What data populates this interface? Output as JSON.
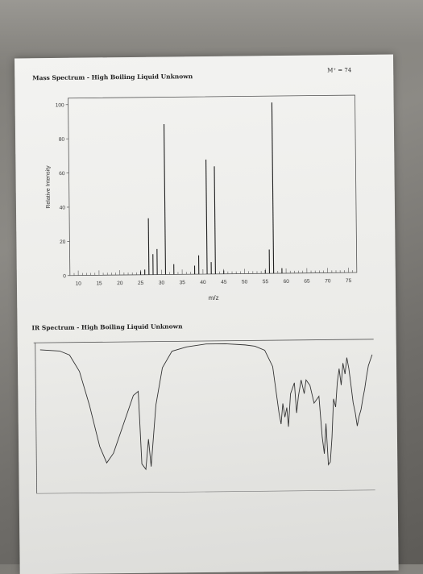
{
  "header": {
    "ms_title": "Mass Spectrum - High Boiling Liquid Unknown",
    "molecular_ion": "M⁺ = 74",
    "ir_title": "IR Spectrum - High Boiling Liquid Unknown"
  },
  "chart_data": [
    {
      "type": "bar",
      "title": "Mass Spectrum - High Boiling Liquid Unknown",
      "xlabel": "m/z",
      "ylabel": "Relative Intensity",
      "xlim": [
        10,
        75
      ],
      "ylim": [
        0,
        100
      ],
      "x_ticks": [
        10,
        15,
        20,
        25,
        30,
        35,
        40,
        45,
        50,
        55,
        60,
        65,
        70,
        75
      ],
      "y_ticks": [
        0,
        20,
        40,
        60,
        80,
        100
      ],
      "grid": false,
      "peaks": [
        {
          "x": 25,
          "y": 2
        },
        {
          "x": 26,
          "y": 3
        },
        {
          "x": 27,
          "y": 33
        },
        {
          "x": 28,
          "y": 12
        },
        {
          "x": 29,
          "y": 15
        },
        {
          "x": 31,
          "y": 88
        },
        {
          "x": 33,
          "y": 6
        },
        {
          "x": 38,
          "y": 5
        },
        {
          "x": 39,
          "y": 11
        },
        {
          "x": 41,
          "y": 67
        },
        {
          "x": 42,
          "y": 7
        },
        {
          "x": 43,
          "y": 63
        },
        {
          "x": 45,
          "y": 2
        },
        {
          "x": 55,
          "y": 2
        },
        {
          "x": 56,
          "y": 14
        },
        {
          "x": 57,
          "y": 100
        },
        {
          "x": 59,
          "y": 3
        }
      ]
    },
    {
      "type": "line",
      "title": "IR Spectrum - High Boiling Liquid Unknown",
      "xlabel": "",
      "ylabel": "",
      "x_reversed": true,
      "trace": [
        {
          "x": 4000,
          "y": 96
        },
        {
          "x": 3800,
          "y": 95
        },
        {
          "x": 3700,
          "y": 92
        },
        {
          "x": 3600,
          "y": 80
        },
        {
          "x": 3500,
          "y": 55
        },
        {
          "x": 3400,
          "y": 25
        },
        {
          "x": 3330,
          "y": 13
        },
        {
          "x": 3260,
          "y": 20
        },
        {
          "x": 3150,
          "y": 42
        },
        {
          "x": 3050,
          "y": 62
        },
        {
          "x": 3000,
          "y": 65
        },
        {
          "x": 2970,
          "y": 12
        },
        {
          "x": 2930,
          "y": 8
        },
        {
          "x": 2900,
          "y": 30
        },
        {
          "x": 2875,
          "y": 10
        },
        {
          "x": 2820,
          "y": 55
        },
        {
          "x": 2750,
          "y": 82
        },
        {
          "x": 2650,
          "y": 94
        },
        {
          "x": 2500,
          "y": 97
        },
        {
          "x": 2300,
          "y": 99
        },
        {
          "x": 2100,
          "y": 99
        },
        {
          "x": 1900,
          "y": 98
        },
        {
          "x": 1800,
          "y": 97
        },
        {
          "x": 1700,
          "y": 94
        },
        {
          "x": 1620,
          "y": 82
        },
        {
          "x": 1560,
          "y": 48
        },
        {
          "x": 1540,
          "y": 40
        },
        {
          "x": 1520,
          "y": 55
        },
        {
          "x": 1500,
          "y": 45
        },
        {
          "x": 1480,
          "y": 52
        },
        {
          "x": 1465,
          "y": 38
        },
        {
          "x": 1440,
          "y": 62
        },
        {
          "x": 1400,
          "y": 70
        },
        {
          "x": 1380,
          "y": 48
        },
        {
          "x": 1360,
          "y": 60
        },
        {
          "x": 1330,
          "y": 72
        },
        {
          "x": 1300,
          "y": 62
        },
        {
          "x": 1280,
          "y": 72
        },
        {
          "x": 1240,
          "y": 68
        },
        {
          "x": 1200,
          "y": 55
        },
        {
          "x": 1150,
          "y": 60
        },
        {
          "x": 1120,
          "y": 30
        },
        {
          "x": 1100,
          "y": 18
        },
        {
          "x": 1080,
          "y": 40
        },
        {
          "x": 1060,
          "y": 10
        },
        {
          "x": 1040,
          "y": 12
        },
        {
          "x": 1020,
          "y": 30
        },
        {
          "x": 1000,
          "y": 58
        },
        {
          "x": 980,
          "y": 52
        },
        {
          "x": 960,
          "y": 70
        },
        {
          "x": 940,
          "y": 80
        },
        {
          "x": 920,
          "y": 68
        },
        {
          "x": 900,
          "y": 84
        },
        {
          "x": 880,
          "y": 76
        },
        {
          "x": 860,
          "y": 88
        },
        {
          "x": 840,
          "y": 80
        },
        {
          "x": 820,
          "y": 68
        },
        {
          "x": 800,
          "y": 55
        },
        {
          "x": 780,
          "y": 48
        },
        {
          "x": 760,
          "y": 38
        },
        {
          "x": 740,
          "y": 45
        },
        {
          "x": 720,
          "y": 50
        },
        {
          "x": 700,
          "y": 58
        },
        {
          "x": 680,
          "y": 65
        },
        {
          "x": 660,
          "y": 74
        },
        {
          "x": 640,
          "y": 82
        },
        {
          "x": 620,
          "y": 86
        },
        {
          "x": 600,
          "y": 90
        }
      ]
    }
  ]
}
